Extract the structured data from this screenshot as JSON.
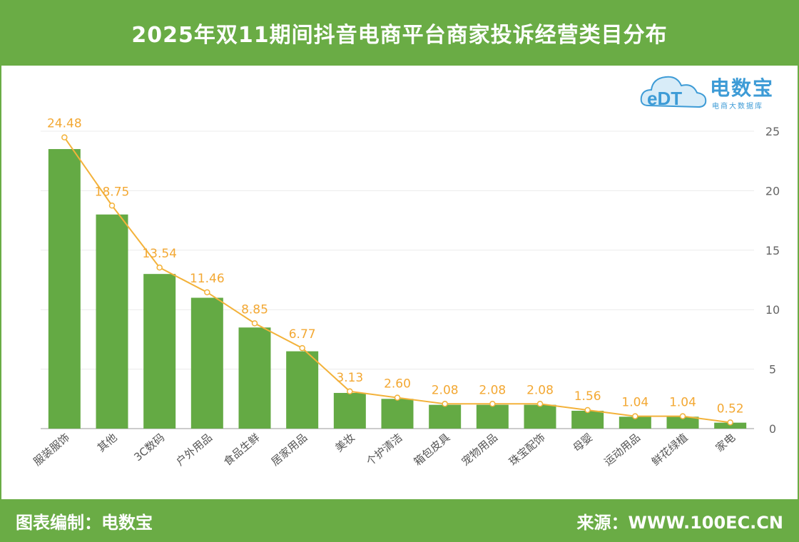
{
  "header": {
    "title": "2025年双11期间抖音电商平台商家投诉经营类目分布"
  },
  "footer": {
    "left": "图表编制：电数宝",
    "right": "来源：WWW.100EC.CN"
  },
  "logo": {
    "brand": "电数宝",
    "subtitle": "电商大数据库",
    "mark": "eDT"
  },
  "colors": {
    "accent": "#6aac45",
    "bar": "#64aa44",
    "line": "#f3b23a",
    "label": "#f3a833",
    "logo": "#3d9bd6"
  },
  "chart_data": {
    "type": "bar",
    "categories": [
      "服装服饰",
      "其他",
      "3C数码",
      "户外用品",
      "食品生鲜",
      "居家用品",
      "美妆",
      "个护清洁",
      "箱包皮具",
      "宠物用品",
      "珠宝配饰",
      "母婴",
      "运动用品",
      "鲜花绿植",
      "家电"
    ],
    "series": [
      {
        "type": "bar",
        "values": [
          23.5,
          18.0,
          13.0,
          11.0,
          8.5,
          6.5,
          3.0,
          2.5,
          2.0,
          2.0,
          2.0,
          1.5,
          1.0,
          1.0,
          0.5
        ]
      },
      {
        "type": "line",
        "values": [
          24.48,
          18.75,
          13.54,
          11.46,
          8.85,
          6.77,
          3.13,
          2.6,
          2.08,
          2.08,
          2.08,
          1.56,
          1.04,
          1.04,
          0.52
        ]
      }
    ],
    "data_labels": [
      "24.48",
      "18.75",
      "13.54",
      "11.46",
      "8.85",
      "6.77",
      "3.13",
      "2.60",
      "2.08",
      "2.08",
      "2.08",
      "1.56",
      "1.04",
      "1.04",
      "0.52"
    ],
    "yticks": [
      "0",
      "5",
      "10",
      "15",
      "20",
      "25"
    ],
    "ylim": [
      0,
      25
    ],
    "y_axis_side": "right",
    "grid": true,
    "legend": "none"
  }
}
